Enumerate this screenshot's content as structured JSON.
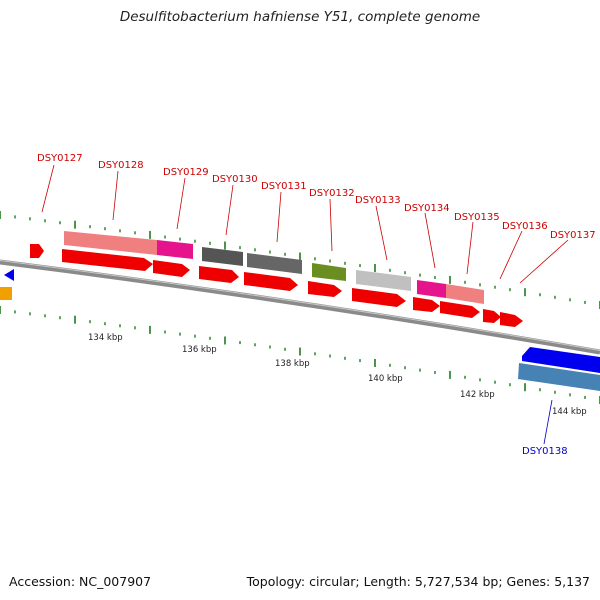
{
  "header": {
    "title": "Desulfitobacterium hafniense Y51, complete genome"
  },
  "footer": {
    "accession": "Accession: NC_007907",
    "summary": "Topology: circular; Length: 5,727,534 bp; Genes: 5,137"
  },
  "colors": {
    "backbone": "#888888",
    "tick": "#1f7a1f",
    "cds": "#ee0000",
    "gene_label": "#cc0000",
    "blue_label": "#0000cc"
  },
  "scale_labels": [
    "134 kbp",
    "136 kbp",
    "138 kbp",
    "140 kbp",
    "142 kbp",
    "144 kbp"
  ],
  "gene_labels": [
    {
      "name": "DSY0127",
      "color": "red"
    },
    {
      "name": "DSY0128",
      "color": "red"
    },
    {
      "name": "DSY0129",
      "color": "red"
    },
    {
      "name": "DSY0130",
      "color": "red"
    },
    {
      "name": "DSY0131",
      "color": "red"
    },
    {
      "name": "DSY0132",
      "color": "red"
    },
    {
      "name": "DSY0133",
      "color": "red"
    },
    {
      "name": "DSY0134",
      "color": "red"
    },
    {
      "name": "DSY0135",
      "color": "red"
    },
    {
      "name": "DSY0136",
      "color": "red"
    },
    {
      "name": "DSY0137",
      "color": "red"
    },
    {
      "name": "DSY0138",
      "color": "blue"
    }
  ]
}
